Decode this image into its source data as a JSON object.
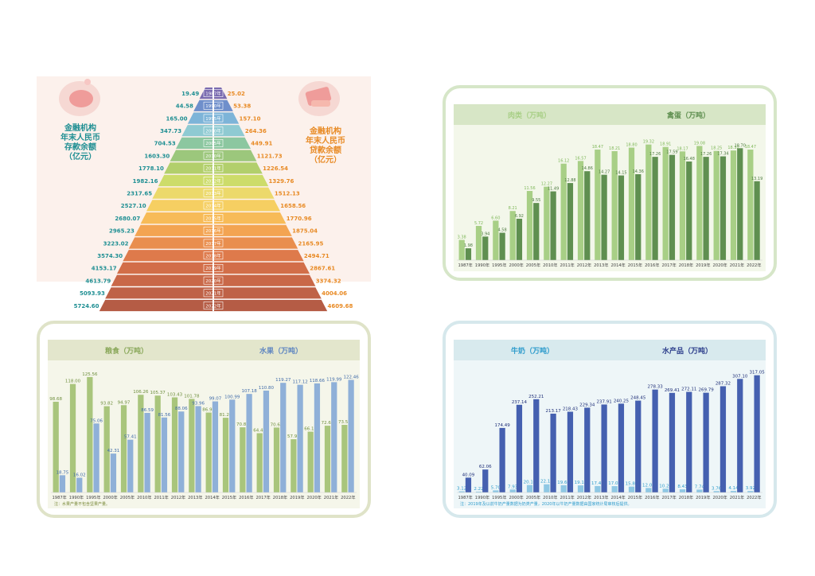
{
  "colors": {
    "deposit_text": "#1f8f93",
    "loan_text": "#e88a24",
    "meat": "#a8cf86",
    "egg": "#5f8f50",
    "grain": "#a9c57c",
    "fruit": "#8fb0d8",
    "milk": "#8fc8e4",
    "aquatic": "#4560b0"
  },
  "pyramid": {
    "left_title": [
      "金融机构",
      "年末人民币",
      "存款余额",
      "（亿元）"
    ],
    "right_title": [
      "金融机构",
      "年末人民币",
      "贷款余额",
      "（亿元）"
    ],
    "years": [
      "1987年",
      "1990年",
      "1995年",
      "2000年",
      "2005年",
      "2010年",
      "2011年",
      "2012年",
      "2013年",
      "2014年",
      "2015年",
      "2016年",
      "2017年",
      "2018年",
      "2019年",
      "2020年",
      "2021年",
      "2022年"
    ],
    "deposits": [
      "19.49",
      "44.58",
      "165.00",
      "347.73",
      "704.53",
      "1603.30",
      "1778.10",
      "1982.16",
      "2317.65",
      "2527.10",
      "2680.07",
      "2965.23",
      "3223.02",
      "3574.30",
      "4153.17",
      "4613.79",
      "5093.93",
      "5724.60"
    ],
    "loans": [
      "25.02",
      "53.38",
      "157.10",
      "264.36",
      "449.91",
      "1121.73",
      "1226.54",
      "1329.76",
      "1512.13",
      "1658.56",
      "1770.96",
      "1875.04",
      "2165.95",
      "2494.71",
      "2867.61",
      "3374.32",
      "4004.06",
      "4609.68"
    ],
    "band_colors": [
      "#7a6bb0",
      "#6f8fcb",
      "#7db4d8",
      "#8fcad2",
      "#8cc7a0",
      "#9cc77c",
      "#b2cf6c",
      "#cddc6a",
      "#ecd96b",
      "#f6cf62",
      "#f7bb58",
      "#f3a452",
      "#e98e4e",
      "#de7a4b",
      "#d26e49",
      "#c96848",
      "#bf6247",
      "#b55c45"
    ]
  },
  "chart_data": [
    {
      "type": "bar",
      "categories": [
        "1987年",
        "1990年",
        "1995年",
        "2000年",
        "2005年",
        "2010年",
        "2011年",
        "2012年",
        "2013年",
        "2014年",
        "2015年",
        "2016年",
        "2017年",
        "2018年",
        "2019年",
        "2020年",
        "2021年",
        "2022年"
      ],
      "series": [
        {
          "name": "肉类（万吨）",
          "values": [
            3.38,
            5.72,
            6.6,
            8.21,
            11.56,
            12.27,
            16.12,
            16.57,
            18.47,
            18.21,
            18.8,
            19.32,
            18.91,
            18.17,
            19.08,
            18.25,
            18.32,
            18.47
          ],
          "labels": [
            "3.38",
            "5.72",
            "6.60",
            "8.21",
            "11.56",
            "12.27",
            "16.12",
            "16.57",
            "18.47",
            "18.21",
            "18.80",
            "19.32",
            "18.91",
            "18.17",
            "19.08",
            "18.25",
            "18.32",
            "18.47"
          ]
        },
        {
          "name": "禽蛋（万吨）",
          "values": [
            1.98,
            3.94,
            4.58,
            6.92,
            9.55,
            11.49,
            12.88,
            14.86,
            14.27,
            14.15,
            14.36,
            17.26,
            17.59,
            16.48,
            17.26,
            17.34,
            18.7,
            13.19
          ],
          "labels": [
            "1.98",
            "3.94",
            "4.58",
            "6.92",
            "9.55",
            "11.49",
            "12.88",
            "14.86",
            "14.27",
            "14.15",
            "14.36",
            "17.26",
            "17.59",
            "16.48",
            "17.26",
            "17.34",
            "18.70",
            "13.19"
          ]
        }
      ],
      "ylim": [
        0,
        21
      ]
    },
    {
      "type": "bar",
      "categories": [
        "1987年",
        "1990年",
        "1995年",
        "2000年",
        "2005年",
        "2010年",
        "2011年",
        "2012年",
        "2013年",
        "2014年",
        "2015年",
        "2016年",
        "2017年",
        "2018年",
        "2019年",
        "2020年",
        "2021年",
        "2022年"
      ],
      "series": [
        {
          "name": "粮食（万吨）",
          "values": [
            98.68,
            118.0,
            125.56,
            93.82,
            94.97,
            106.26,
            105.37,
            103.43,
            101.78,
            86.92,
            81.26,
            70.87,
            64.47,
            70.62,
            57.91,
            66.15,
            72.61,
            73.53
          ],
          "labels": [
            "98.68",
            "118.00",
            "125.56",
            "93.82",
            "94.97",
            "106.26",
            "105.37",
            "103.43",
            "101.78",
            "86.92",
            "81.26",
            "70.87",
            "64.47",
            "70.62",
            "57.91",
            "66.15",
            "72.61",
            "73.53"
          ]
        },
        {
          "name": "水果（万吨）",
          "values": [
            18.75,
            16.02,
            75.06,
            42.31,
            57.41,
            86.59,
            81.56,
            88.06,
            93.96,
            99.07,
            100.99,
            107.18,
            110.8,
            119.27,
            117.12,
            118.66,
            119.99,
            122.46
          ],
          "labels": [
            "18.75",
            "16.02",
            "75.06",
            "42.31",
            "57.41",
            "86.59",
            "81.56",
            "88.06",
            "93.96",
            "99.07",
            "100.99",
            "107.18",
            "110.80",
            "119.27",
            "117.12",
            "118.66",
            "119.99",
            "122.46"
          ]
        }
      ],
      "ylim": [
        0,
        135
      ],
      "note": "注：水果产量不包含坚果产量。"
    },
    {
      "type": "bar",
      "categories": [
        "1987年",
        "1990年",
        "1995年",
        "2000年",
        "2005年",
        "2010年",
        "2011年",
        "2012年",
        "2013年",
        "2014年",
        "2015年",
        "2016年",
        "2017年",
        "2018年",
        "2019年",
        "2020年",
        "2021年",
        "2022年"
      ],
      "series": [
        {
          "name": "牛奶（万吨）",
          "values": [
            3.12,
            2.22,
            5.7,
            7.93,
            20.16,
            22.13,
            19.6,
            19.13,
            17.44,
            17.08,
            15.86,
            12.05,
            10.2,
            8.43,
            7.74,
            3.76,
            4.14,
            3.92
          ],
          "labels": [
            "3.12",
            "2.22",
            "5.70",
            "7.93",
            "20.16",
            "22.13",
            "19.60",
            "19.13",
            "17.44",
            "17.08",
            "15.86",
            "12.05",
            "10.20",
            "8.43",
            "7.74",
            "3.76",
            "4.14",
            "3.92"
          ]
        },
        {
          "name": "水产品（万吨）",
          "values": [
            40.09,
            62.06,
            174.49,
            237.14,
            252.21,
            213.17,
            218.43,
            229.34,
            237.91,
            240.25,
            248.45,
            278.33,
            269.41,
            272.11,
            269.79,
            287.32,
            307.1,
            317.05
          ],
          "labels": [
            "40.09",
            "62.06",
            "174.49",
            "237.14",
            "252.21",
            "213.17",
            "218.43",
            "229.34",
            "237.91",
            "240.25",
            "248.45",
            "278.33",
            "269.41",
            "272.11",
            "269.79",
            "287.32",
            "307.10",
            "317.05"
          ]
        }
      ],
      "ylim": [
        0,
        340
      ],
      "note": "注：2019年及以前牛奶产量数据为奶类产量，2020年以牛奶产量数据由国家统计局审核后提供。"
    }
  ]
}
